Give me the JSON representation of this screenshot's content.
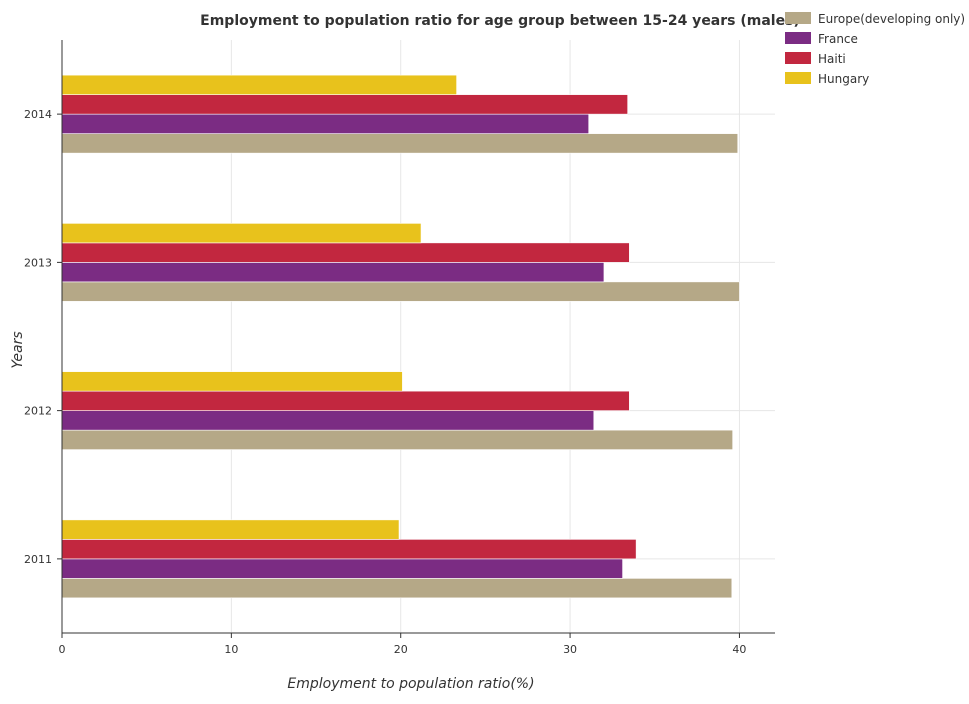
{
  "chart_data": {
    "type": "bar",
    "orientation": "horizontal",
    "title": "Employment to population ratio for age group between 15-24 years (males)",
    "xlabel": "Employment to population ratio(%)",
    "ylabel": "Years",
    "categories": [
      "2011",
      "2012",
      "2013",
      "2014"
    ],
    "xlim": [
      0,
      42.1
    ],
    "xticks": [
      0,
      10,
      20,
      30,
      40
    ],
    "xtick_labels": [
      "0",
      "10",
      "20",
      "30",
      "40"
    ],
    "grid": true,
    "legend_position": "top-right",
    "series": [
      {
        "name": "Europe(developing only)",
        "color": "#b5a887",
        "values": [
          39.55,
          39.6,
          40.0,
          39.9
        ]
      },
      {
        "name": "France",
        "color": "#7b2c83",
        "values": [
          33.1,
          31.4,
          32.0,
          31.1
        ]
      },
      {
        "name": "Haiti",
        "color": "#c2273f",
        "values": [
          33.9,
          33.5,
          33.5,
          33.4
        ]
      },
      {
        "name": "Hungary",
        "color": "#e8c21c",
        "values": [
          19.9,
          20.1,
          21.2,
          23.3
        ]
      }
    ]
  }
}
